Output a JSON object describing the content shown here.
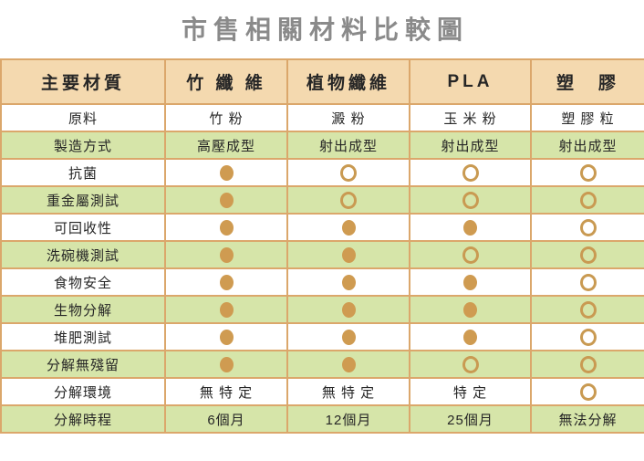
{
  "title": "市售相關材料比較圖",
  "colors": {
    "title_text": "#8a8a8a",
    "header_bg": "#f4d9af",
    "green_row_bg": "#d6e5a9",
    "white_row_bg": "#ffffff",
    "border": "#dba76b",
    "dot_fill": "#cf9b51",
    "cell_text": "#262626"
  },
  "legend_semantics": {
    "filled_dot": "符合 (yes)",
    "open_dot": "不符合 (no)"
  },
  "table": {
    "columns": [
      "主要材質",
      "竹 纖 維",
      "植物纖維",
      "PLA",
      "塑　膠"
    ],
    "rows": [
      {
        "label": "原料",
        "cells": [
          {
            "type": "text",
            "value": "竹 粉"
          },
          {
            "type": "text",
            "value": "澱 粉"
          },
          {
            "type": "text",
            "value": "玉 米 粉"
          },
          {
            "type": "text",
            "value": "塑 膠 粒"
          }
        ]
      },
      {
        "label": "製造方式",
        "cells": [
          {
            "type": "text",
            "value": "高壓成型"
          },
          {
            "type": "text",
            "value": "射出成型"
          },
          {
            "type": "text",
            "value": "射出成型"
          },
          {
            "type": "text",
            "value": "射出成型"
          }
        ]
      },
      {
        "label": "抗菌",
        "cells": [
          {
            "type": "dot",
            "value": "filled"
          },
          {
            "type": "dot",
            "value": "open"
          },
          {
            "type": "dot",
            "value": "open"
          },
          {
            "type": "dot",
            "value": "open"
          }
        ]
      },
      {
        "label": "重金屬測試",
        "cells": [
          {
            "type": "dot",
            "value": "filled"
          },
          {
            "type": "dot",
            "value": "open"
          },
          {
            "type": "dot",
            "value": "open"
          },
          {
            "type": "dot",
            "value": "open"
          }
        ]
      },
      {
        "label": "可回收性",
        "cells": [
          {
            "type": "dot",
            "value": "filled"
          },
          {
            "type": "dot",
            "value": "filled"
          },
          {
            "type": "dot",
            "value": "filled"
          },
          {
            "type": "dot",
            "value": "open"
          }
        ]
      },
      {
        "label": "洗碗機測試",
        "cells": [
          {
            "type": "dot",
            "value": "filled"
          },
          {
            "type": "dot",
            "value": "filled"
          },
          {
            "type": "dot",
            "value": "open"
          },
          {
            "type": "dot",
            "value": "open"
          }
        ]
      },
      {
        "label": "食物安全",
        "cells": [
          {
            "type": "dot",
            "value": "filled"
          },
          {
            "type": "dot",
            "value": "filled"
          },
          {
            "type": "dot",
            "value": "filled"
          },
          {
            "type": "dot",
            "value": "open"
          }
        ]
      },
      {
        "label": "生物分解",
        "cells": [
          {
            "type": "dot",
            "value": "filled"
          },
          {
            "type": "dot",
            "value": "filled"
          },
          {
            "type": "dot",
            "value": "filled"
          },
          {
            "type": "dot",
            "value": "open"
          }
        ]
      },
      {
        "label": "堆肥測試",
        "cells": [
          {
            "type": "dot",
            "value": "filled"
          },
          {
            "type": "dot",
            "value": "filled"
          },
          {
            "type": "dot",
            "value": "filled"
          },
          {
            "type": "dot",
            "value": "open"
          }
        ]
      },
      {
        "label": "分解無殘留",
        "cells": [
          {
            "type": "dot",
            "value": "filled"
          },
          {
            "type": "dot",
            "value": "filled"
          },
          {
            "type": "dot",
            "value": "open"
          },
          {
            "type": "dot",
            "value": "open"
          }
        ]
      },
      {
        "label": "分解環境",
        "cells": [
          {
            "type": "text",
            "value": "無 特 定"
          },
          {
            "type": "text",
            "value": "無 特 定"
          },
          {
            "type": "text",
            "value": "特 定"
          },
          {
            "type": "dot",
            "value": "open"
          }
        ]
      },
      {
        "label": "分解時程",
        "cells": [
          {
            "type": "text",
            "value": "6個月"
          },
          {
            "type": "text",
            "value": "12個月"
          },
          {
            "type": "text",
            "value": "25個月"
          },
          {
            "type": "text",
            "value": "無法分解"
          }
        ]
      }
    ]
  },
  "chart_data": {
    "type": "table",
    "title": "市售相關材料比較圖",
    "columns": [
      "主要材質",
      "竹纖維",
      "植物纖維",
      "PLA",
      "塑膠"
    ],
    "rows": [
      [
        "原料",
        "竹粉",
        "澱粉",
        "玉米粉",
        "塑膠粒"
      ],
      [
        "製造方式",
        "高壓成型",
        "射出成型",
        "射出成型",
        "射出成型"
      ],
      [
        "抗菌",
        "●",
        "○",
        "○",
        "○"
      ],
      [
        "重金屬測試",
        "●",
        "○",
        "○",
        "○"
      ],
      [
        "可回收性",
        "●",
        "●",
        "●",
        "○"
      ],
      [
        "洗碗機測試",
        "●",
        "●",
        "○",
        "○"
      ],
      [
        "食物安全",
        "●",
        "●",
        "●",
        "○"
      ],
      [
        "生物分解",
        "●",
        "●",
        "●",
        "○"
      ],
      [
        "堆肥測試",
        "●",
        "●",
        "●",
        "○"
      ],
      [
        "分解無殘留",
        "●",
        "●",
        "○",
        "○"
      ],
      [
        "分解環境",
        "無特定",
        "無特定",
        "特定",
        "○"
      ],
      [
        "分解時程",
        "6個月",
        "12個月",
        "25個月",
        "無法分解"
      ]
    ],
    "layout_hints": {
      "zebra": "rows alternate white / light-green starting with white",
      "header_background": "#f4d9af",
      "filled_dot_means": "yes / passes",
      "open_dot_means": "no / fails"
    }
  }
}
